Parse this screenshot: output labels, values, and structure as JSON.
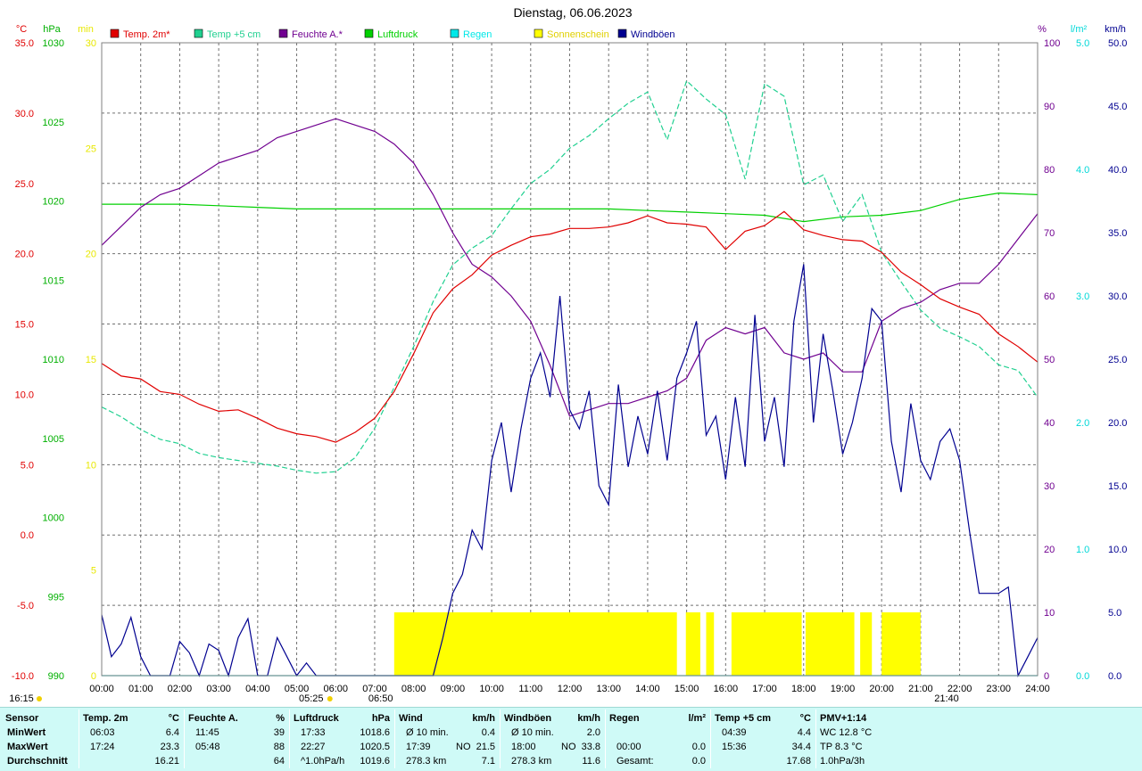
{
  "title": "Dienstag, 06.06.2023",
  "colors": {
    "temp2m": "#e00000",
    "temp5cm": "#20d090",
    "humidity": "#700090",
    "pressure": "#00d000",
    "rain": "#00e8e8",
    "sun": "#ffff00",
    "gust": "#000090",
    "summary_bg": "#cffaf7"
  },
  "axes": {
    "temp": {
      "unit": "°C",
      "ticks": [
        "35.0",
        "30.0",
        "25.0",
        "20.0",
        "15.0",
        "10.0",
        "5.0",
        "0.0",
        "-5.0",
        "-10.0"
      ],
      "min": -10,
      "max": 35,
      "color": "#e00000"
    },
    "pressure": {
      "unit": "hPa",
      "ticks": [
        "1030",
        "1025",
        "1020",
        "1015",
        "1010",
        "1005",
        "1000",
        "995",
        "990"
      ],
      "min": 990,
      "max": 1030,
      "color": "#00b000"
    },
    "sun": {
      "unit": "min",
      "ticks": [
        "30",
        "25",
        "20",
        "15",
        "10",
        "5",
        "0"
      ],
      "min": 0,
      "max": 30,
      "color": "#e8e800"
    },
    "humidity": {
      "unit": "%",
      "ticks": [
        "100",
        "90",
        "80",
        "70",
        "60",
        "50",
        "40",
        "30",
        "20",
        "10",
        "0"
      ],
      "min": 0,
      "max": 100,
      "color": "#700090"
    },
    "rain": {
      "unit": "l/m²",
      "ticks": [
        "5.0",
        "4.0",
        "3.0",
        "2.0",
        "1.0",
        "0.0"
      ],
      "min": 0,
      "max": 5,
      "color": "#00d8d8"
    },
    "wind": {
      "unit": "km/h",
      "ticks": [
        "50.0",
        "45.0",
        "40.0",
        "35.0",
        "30.0",
        "25.0",
        "20.0",
        "15.0",
        "10.0",
        "5.0",
        "0.0"
      ],
      "min": 0,
      "max": 50,
      "color": "#000090"
    }
  },
  "legend": [
    {
      "label": "Temp. 2m*",
      "color": "#e00000"
    },
    {
      "label": "Temp +5 cm",
      "color": "#20d090"
    },
    {
      "label": "Feuchte A.*",
      "color": "#700090"
    },
    {
      "label": "Luftdruck",
      "color": "#00d000"
    },
    {
      "label": "Regen",
      "color": "#00e8e8"
    },
    {
      "label": "Sonnenschein",
      "color": "#ffff00"
    },
    {
      "label": "Windböen",
      "color": "#000090"
    }
  ],
  "x_ticks": [
    "00:00",
    "01:00",
    "02:00",
    "03:00",
    "04:00",
    "05:00",
    "06:00",
    "07:00",
    "08:00",
    "09:00",
    "10:00",
    "11:00",
    "12:00",
    "13:00",
    "14:00",
    "15:00",
    "16:00",
    "17:00",
    "18:00",
    "19:00",
    "20:00",
    "21:00",
    "22:00",
    "23:00",
    "24:00"
  ],
  "markers": {
    "moonset": "16:15",
    "sunrise": "05:25",
    "sunrise_label": "06:50",
    "sunset": "21:40"
  },
  "chart_data": {
    "type": "line",
    "x_unit": "hour",
    "series": [
      {
        "name": "Temp. 2m*",
        "unit": "°C",
        "x": [
          0,
          0.5,
          1,
          1.5,
          2,
          2.5,
          3,
          3.5,
          4,
          4.5,
          5,
          5.5,
          6,
          6.5,
          7,
          7.5,
          8,
          8.5,
          9,
          9.5,
          10,
          10.5,
          11,
          11.5,
          12,
          12.5,
          13,
          13.5,
          14,
          14.5,
          15,
          15.5,
          16,
          16.5,
          17,
          17.5,
          18,
          18.5,
          19,
          19.5,
          20,
          20.5,
          21,
          21.5,
          22,
          22.5,
          23,
          23.5,
          24
        ],
        "values": [
          12.2,
          11.3,
          11.1,
          10.2,
          10.0,
          9.3,
          8.8,
          8.9,
          8.3,
          7.6,
          7.2,
          7.0,
          6.6,
          7.3,
          8.3,
          10.2,
          12.9,
          15.8,
          17.5,
          18.5,
          19.9,
          20.6,
          21.2,
          21.4,
          21.8,
          21.8,
          21.9,
          22.2,
          22.7,
          22.2,
          22.1,
          21.9,
          20.3,
          21.6,
          22.0,
          23.0,
          21.7,
          21.3,
          21.0,
          20.9,
          20.1,
          18.7,
          17.8,
          16.8,
          16.2,
          15.7,
          14.3,
          13.4,
          12.3
        ]
      },
      {
        "name": "Temp +5 cm",
        "unit": "°C",
        "x": [
          0,
          0.5,
          1,
          1.5,
          2,
          2.5,
          3,
          3.5,
          4,
          4.5,
          5,
          5.5,
          6,
          6.5,
          7,
          7.5,
          8,
          8.5,
          9,
          9.5,
          10,
          10.5,
          11,
          11.5,
          12,
          12.5,
          13,
          13.5,
          14,
          14.5,
          15,
          15.5,
          16,
          16.5,
          17,
          17.5,
          18,
          18.5,
          19,
          19.5,
          20,
          20.5,
          21,
          21.5,
          22,
          22.5,
          23,
          23.5,
          24
        ],
        "values": [
          9.1,
          8.4,
          7.5,
          6.8,
          6.5,
          5.8,
          5.5,
          5.3,
          5.1,
          4.9,
          4.6,
          4.4,
          4.5,
          5.5,
          7.6,
          10.5,
          13.4,
          16.6,
          19.2,
          20.4,
          21.3,
          23.2,
          25.0,
          26.0,
          27.5,
          28.4,
          29.6,
          30.7,
          31.5,
          28.1,
          32.3,
          31.0,
          29.9,
          25.3,
          32.1,
          31.2,
          24.9,
          25.6,
          22.3,
          24.2,
          20.1,
          18.0,
          16.0,
          14.7,
          14.1,
          13.4,
          12.1,
          11.7,
          9.8
        ]
      },
      {
        "name": "Feuchte A.*",
        "unit": "%",
        "x": [
          0,
          0.5,
          1,
          1.5,
          2,
          2.5,
          3,
          3.5,
          4,
          4.5,
          5,
          5.5,
          6,
          6.5,
          7,
          7.5,
          8,
          8.5,
          9,
          9.5,
          10,
          10.5,
          11,
          11.5,
          12,
          12.5,
          13,
          13.5,
          14,
          14.5,
          15,
          15.5,
          16,
          16.5,
          17,
          17.5,
          18,
          18.5,
          19,
          19.5,
          20,
          20.5,
          21,
          21.5,
          22,
          22.5,
          23,
          23.5,
          24
        ],
        "values": [
          68,
          71,
          74,
          76,
          77,
          79,
          81,
          82,
          83,
          85,
          86,
          87,
          88,
          87,
          86,
          84,
          81,
          76,
          70,
          65,
          63,
          60,
          56,
          49,
          41,
          42,
          43,
          43,
          44,
          45,
          47,
          53,
          55,
          54,
          55,
          51,
          50,
          51,
          48,
          48,
          56,
          58,
          59,
          61,
          62,
          62,
          65,
          69,
          73
        ]
      },
      {
        "name": "Luftdruck",
        "unit": "hPa",
        "x": [
          0,
          1,
          2,
          3,
          4,
          5,
          6,
          7,
          8,
          9,
          10,
          11,
          12,
          13,
          14,
          15,
          16,
          17,
          18,
          19,
          20,
          21,
          22,
          23,
          24
        ],
        "values": [
          1019.8,
          1019.8,
          1019.8,
          1019.7,
          1019.6,
          1019.5,
          1019.5,
          1019.5,
          1019.5,
          1019.5,
          1019.5,
          1019.5,
          1019.5,
          1019.5,
          1019.4,
          1019.3,
          1019.2,
          1019.1,
          1018.7,
          1019.0,
          1019.1,
          1019.4,
          1020.1,
          1020.5,
          1020.4
        ]
      },
      {
        "name": "Regen",
        "unit": "l/m²",
        "x": [
          0,
          24
        ],
        "values": [
          0,
          0
        ]
      },
      {
        "name": "Windböen",
        "unit": "km/h",
        "x": [
          0,
          0.25,
          0.5,
          0.75,
          1,
          1.25,
          1.5,
          1.75,
          2,
          2.25,
          2.5,
          2.75,
          3,
          3.25,
          3.5,
          3.75,
          4,
          4.25,
          4.5,
          4.75,
          5,
          5.25,
          5.5,
          5.75,
          6,
          6.25,
          6.5,
          6.75,
          7,
          7.25,
          7.5,
          7.75,
          8,
          8.25,
          8.5,
          8.75,
          9,
          9.25,
          9.5,
          9.75,
          10,
          10.25,
          10.5,
          10.75,
          11,
          11.25,
          11.5,
          11.75,
          12,
          12.25,
          12.5,
          12.75,
          13,
          13.25,
          13.5,
          13.75,
          14,
          14.25,
          14.5,
          14.75,
          15,
          15.25,
          15.5,
          15.75,
          16,
          16.25,
          16.5,
          16.75,
          17,
          17.25,
          17.5,
          17.75,
          18,
          18.25,
          18.5,
          18.75,
          19,
          19.25,
          19.5,
          19.75,
          20,
          20.25,
          20.5,
          20.75,
          21,
          21.25,
          21.5,
          21.75,
          22,
          22.25,
          22.5,
          22.75,
          23,
          23.25,
          23.5,
          23.75,
          24
        ],
        "values": [
          4.8,
          1.5,
          2.5,
          4.6,
          1.5,
          0,
          0,
          0,
          2.7,
          1.8,
          0,
          2.5,
          2.0,
          0,
          3.0,
          4.5,
          0,
          0,
          3.0,
          1.5,
          0,
          1.0,
          0,
          0,
          0,
          0,
          0,
          0,
          0,
          0,
          0,
          0,
          0,
          0,
          0,
          3.0,
          6.5,
          8.0,
          11.5,
          10.0,
          17.0,
          20.0,
          14.5,
          19.5,
          23.5,
          25.5,
          22.0,
          30.0,
          21.0,
          19.5,
          22.5,
          15.0,
          13.5,
          23.0,
          16.5,
          20.5,
          17.5,
          22.5,
          17.0,
          23.5,
          25.5,
          28.0,
          19.0,
          20.5,
          15.5,
          22.0,
          16.5,
          28.5,
          18.5,
          22.0,
          16.5,
          28.0,
          32.5,
          20.0,
          27.0,
          22.5,
          17.5,
          20.0,
          23.5,
          29.0,
          28.0,
          18.5,
          14.5,
          21.5,
          17.0,
          15.5,
          18.5,
          19.5,
          17.0,
          11.5,
          6.5,
          6.5,
          6.5,
          7.0,
          0,
          1.5,
          3.0
        ]
      },
      {
        "name": "Sonnenschein",
        "unit": "min",
        "type": "bar",
        "x_start": 7.5,
        "x_end": 21.0,
        "value": 3.0,
        "gaps": [
          [
            14.75,
            14.98
          ],
          [
            15.35,
            15.5
          ],
          [
            15.7,
            16.15
          ],
          [
            17.95,
            18.05
          ],
          [
            19.3,
            19.45
          ],
          [
            19.75,
            20.0
          ]
        ]
      }
    ],
    "ylim_temp": [
      -10,
      35
    ],
    "xlim": [
      0,
      24
    ],
    "grid": true,
    "legend_position": "top"
  },
  "summary": {
    "columns": [
      {
        "key": "sensor",
        "header": "Sensor",
        "unit": "",
        "rows": [
          "MinWert",
          "MaxWert",
          "Durchschnitt"
        ]
      },
      {
        "key": "temp2m",
        "header": "Temp. 2m",
        "unit": "°C",
        "times": [
          "06:03",
          "17:24",
          ""
        ],
        "values": [
          "6.4",
          "23.3",
          "16.21"
        ]
      },
      {
        "key": "humidity",
        "header": "Feuchte A.",
        "unit": "%",
        "times": [
          "11:45",
          "05:48",
          ""
        ],
        "values": [
          "39",
          "88",
          "64"
        ]
      },
      {
        "key": "pressure",
        "header": "Luftdruck",
        "unit": "hPa",
        "times": [
          "17:33",
          "22:27",
          "^1.0hPa/h"
        ],
        "values": [
          "1018.6",
          "1020.5",
          "1019.6"
        ]
      },
      {
        "key": "wind",
        "header": "Wind",
        "unit": "km/h",
        "times": [
          "Ø 10 min.",
          "17:39",
          "278.3 km"
        ],
        "mids": [
          "",
          "NO",
          ""
        ],
        "values": [
          "0.4",
          "21.5",
          "7.1"
        ]
      },
      {
        "key": "gusts",
        "header": "Windböen",
        "unit": "km/h",
        "times": [
          "Ø 10 min.",
          "18:00",
          "278.3 km"
        ],
        "mids": [
          "",
          "NO",
          ""
        ],
        "values": [
          "2.0",
          "33.8",
          "11.6"
        ]
      },
      {
        "key": "rain",
        "header": "Regen",
        "unit": "l/m²",
        "times": [
          "",
          "00:00",
          "Gesamt:"
        ],
        "values": [
          "",
          "0.0",
          "0.0"
        ]
      },
      {
        "key": "temp5cm",
        "header": "Temp +5 cm",
        "unit": "°C",
        "times": [
          "04:39",
          "15:36",
          ""
        ],
        "values": [
          "4.4",
          "34.4",
          "17.68"
        ]
      },
      {
        "key": "pmv",
        "header": "PMV+1:14",
        "unit": "",
        "times": [
          "WC 12.8 °C",
          "TP 8.3 °C",
          "1.0hPa/3h"
        ],
        "values": [
          "",
          "",
          ""
        ]
      }
    ]
  }
}
